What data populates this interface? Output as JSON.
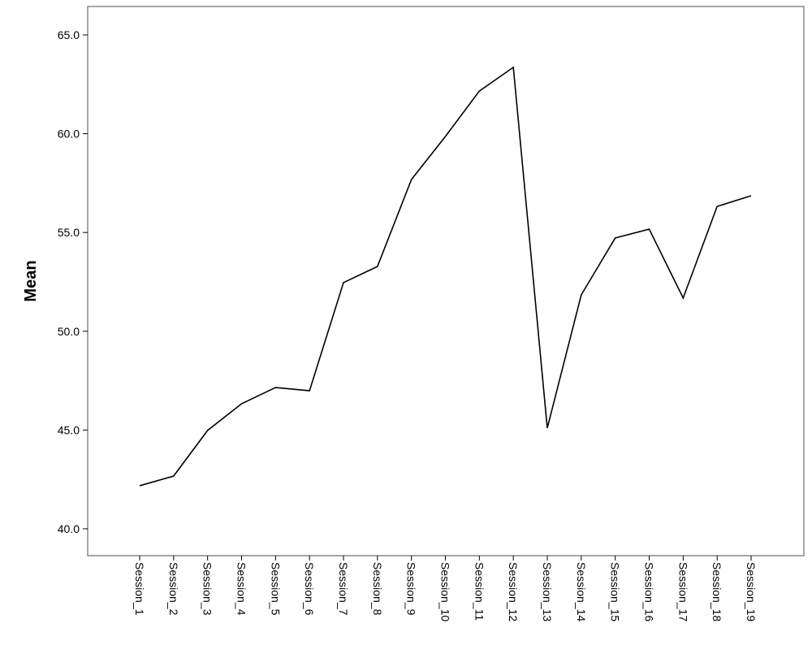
{
  "chart_data": {
    "type": "line",
    "y_label": "Mean",
    "categories": [
      "Session_1",
      "Session_2",
      "Session_3",
      "Session_4",
      "Session_5",
      "Session_6",
      "Session_7",
      "Session_8",
      "Session_9",
      "Session_10",
      "Session_11",
      "Session_12",
      "Session_13",
      "Session_14",
      "Session_15",
      "Session_16",
      "Session_17",
      "Session_18",
      "Session_19"
    ],
    "series": [
      {
        "color": "#000000",
        "values": [
          42.18,
          42.67,
          44.98,
          46.33,
          47.15,
          46.99,
          52.46,
          53.28,
          57.68,
          59.86,
          62.16,
          63.36,
          45.1,
          51.84,
          54.72,
          55.17,
          51.68,
          56.32,
          56.86
        ]
      }
    ],
    "ylim": [
      38.64,
      66.44
    ],
    "yticks": [
      {
        "value": 40,
        "label": "40.0"
      },
      {
        "value": 45,
        "label": "45.0"
      },
      {
        "value": 50,
        "label": "50.0"
      },
      {
        "value": 55,
        "label": "55.0"
      },
      {
        "value": 60,
        "label": "60.0"
      },
      {
        "value": 65,
        "label": "65.0"
      }
    ]
  }
}
